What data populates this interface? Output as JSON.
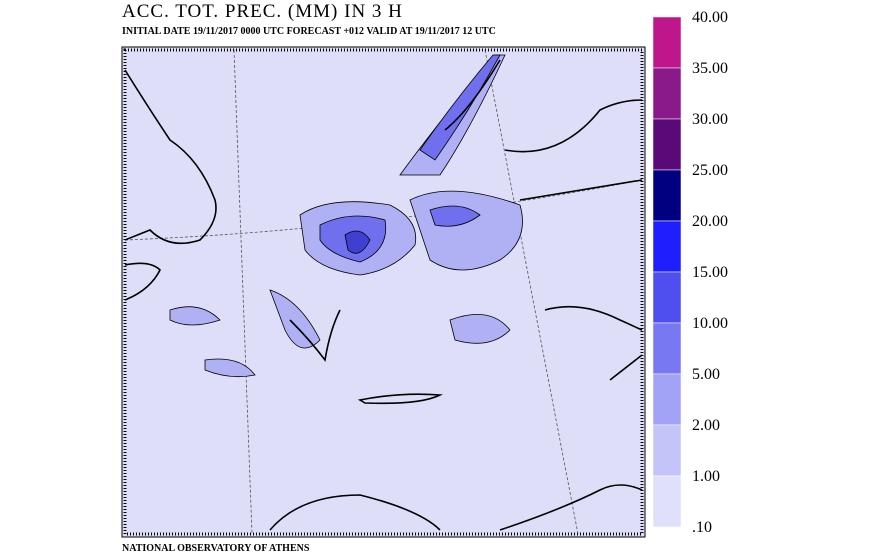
{
  "header": {
    "title": "ACC. TOT. PREC. (MM) IN 3 H",
    "subtitle": "INITIAL DATE 19/11/2017   0000 UTC FORECAST +012 VALID AT  19/11/2017  12 UTC"
  },
  "legend": {
    "labels": [
      "40.00",
      "35.00",
      "30.00",
      "25.00",
      "20.00",
      "15.00",
      "10.00",
      "5.00",
      "2.00",
      "1.00",
      ".10"
    ],
    "colors": [
      "#c0168c",
      "#8a1a8a",
      "#5a0a78",
      "#000080",
      "#1e1eff",
      "#4f4ff0",
      "#7878f2",
      "#a2a2f6",
      "#c4c4f9",
      "#e0e0fa"
    ]
  },
  "footer": {
    "text": "NATIONAL OBSERVATORY OF ATHENS"
  }
}
